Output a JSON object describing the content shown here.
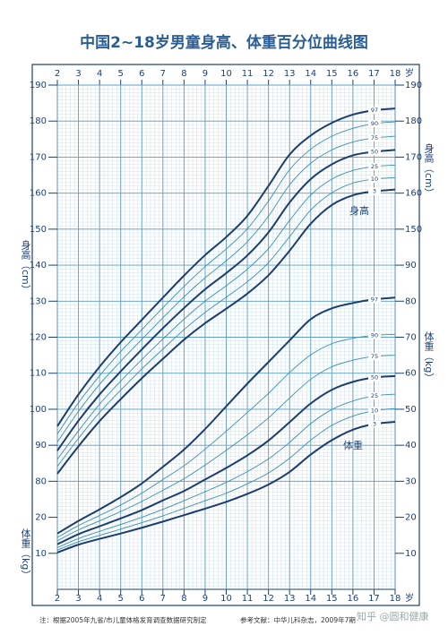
{
  "chart_data": {
    "type": "line",
    "title": "中国2~18岁男童身高、体重百分位曲线图",
    "x_unit": "岁",
    "height_label": "身高（cm）",
    "weight_label": "体重（kg）",
    "height_curve_label": "身高",
    "weight_curve_label": "体重",
    "x": [
      2,
      3,
      4,
      5,
      6,
      7,
      8,
      9,
      10,
      11,
      12,
      13,
      14,
      15,
      16,
      17,
      18
    ],
    "xlim": [
      2,
      18
    ],
    "xticks": [
      2,
      3,
      4,
      5,
      6,
      7,
      8,
      9,
      10,
      11,
      12,
      13,
      14,
      15,
      16,
      17,
      18
    ],
    "ylim": [
      50,
      190
    ],
    "yticks": [
      80,
      90,
      100,
      110,
      120,
      130,
      140,
      150,
      160,
      170,
      180,
      190
    ],
    "yticks_right": [
      150,
      160,
      170,
      180,
      190
    ],
    "y2lim": [
      0,
      140
    ],
    "y2ticks": [
      10,
      20,
      30,
      40,
      50,
      60,
      70,
      80,
      90
    ],
    "y2ticks_left": [
      10,
      20
    ],
    "grid": true,
    "series": [
      {
        "name": "97",
        "color": "#1c3d6e",
        "values": [
          95.3,
          104.1,
          111.8,
          118.6,
          124.8,
          131.0,
          137.1,
          142.8,
          147.8,
          153.7,
          162.0,
          170.7,
          176.0,
          179.5,
          181.8,
          183.0,
          183.5
        ]
      },
      {
        "name": "90",
        "color": "#3a8fb0",
        "values": [
          93.1,
          101.8,
          109.3,
          116.0,
          122.1,
          128.2,
          134.1,
          139.6,
          144.5,
          150.1,
          157.8,
          166.5,
          172.2,
          175.8,
          178.0,
          179.3,
          179.8
        ]
      },
      {
        "name": "75",
        "color": "#3a8fb0",
        "values": [
          90.9,
          99.4,
          106.9,
          113.3,
          119.4,
          125.4,
          131.2,
          136.5,
          141.2,
          146.5,
          153.6,
          162.3,
          168.3,
          172.0,
          174.2,
          175.3,
          175.8
        ]
      },
      {
        "name": "50",
        "color": "#1c3d6e",
        "values": [
          88.5,
          96.8,
          104.1,
          110.5,
          116.6,
          122.5,
          128.1,
          133.3,
          137.8,
          142.7,
          149.1,
          157.4,
          163.9,
          168.0,
          170.5,
          171.5,
          172.0
        ]
      },
      {
        "name": "25",
        "color": "#3a8fb0",
        "values": [
          86.1,
          94.0,
          101.4,
          107.8,
          113.8,
          119.5,
          125.0,
          130.0,
          134.3,
          138.9,
          144.6,
          152.4,
          159.5,
          163.9,
          166.3,
          167.4,
          167.8
        ]
      },
      {
        "name": "10",
        "color": "#3a8fb0",
        "values": [
          84.1,
          91.9,
          99.1,
          105.3,
          111.2,
          116.7,
          122.1,
          126.9,
          131.1,
          135.4,
          140.7,
          147.9,
          155.3,
          160.1,
          162.8,
          163.9,
          164.3
        ]
      },
      {
        "name": "3",
        "color": "#1c3d6e",
        "values": [
          82.1,
          89.7,
          96.7,
          102.8,
          108.6,
          114.0,
          119.3,
          123.9,
          127.9,
          132.1,
          137.2,
          144.0,
          151.5,
          156.7,
          159.4,
          160.5,
          161.0
        ]
      },
      {
        "name": "97",
        "color": "#1c3d6e",
        "axis": "y2",
        "values": [
          15.5,
          19.0,
          22.2,
          25.6,
          29.4,
          34.0,
          38.8,
          44.5,
          50.8,
          57.1,
          63.1,
          69.1,
          75.0,
          78.0,
          79.5,
          80.5,
          81.0
        ]
      },
      {
        "name": "90",
        "color": "#3a8fb0",
        "axis": "y2",
        "values": [
          14.4,
          17.7,
          20.5,
          23.4,
          26.7,
          30.5,
          34.3,
          38.9,
          43.9,
          49.1,
          54.4,
          60.2,
          65.1,
          68.2,
          69.7,
          70.5,
          70.8
        ]
      },
      {
        "name": "75",
        "color": "#3a8fb0",
        "axis": "y2",
        "values": [
          13.5,
          16.5,
          19.0,
          21.6,
          24.4,
          27.5,
          30.7,
          34.5,
          38.6,
          42.9,
          47.6,
          53.1,
          58.3,
          61.8,
          63.6,
          64.7,
          65.0
        ]
      },
      {
        "name": "50",
        "color": "#1c3d6e",
        "axis": "y2",
        "values": [
          12.5,
          15.3,
          17.5,
          19.7,
          22.0,
          24.7,
          27.3,
          30.5,
          33.7,
          37.2,
          41.3,
          46.4,
          51.6,
          55.4,
          57.6,
          58.8,
          59.2
        ]
      },
      {
        "name": "25",
        "color": "#3a8fb0",
        "axis": "y2",
        "values": [
          11.6,
          14.1,
          16.1,
          18.0,
          20.0,
          22.2,
          24.6,
          27.1,
          29.7,
          32.7,
          36.2,
          40.8,
          46.0,
          49.9,
          52.3,
          53.7,
          54.2
        ]
      },
      {
        "name": "10",
        "color": "#3a8fb0",
        "axis": "y2",
        "values": [
          10.9,
          13.2,
          15.0,
          16.7,
          18.5,
          20.4,
          22.5,
          24.6,
          26.7,
          29.3,
          32.3,
          36.4,
          41.4,
          45.5,
          48.1,
          49.6,
          50.2
        ]
      },
      {
        "name": "3",
        "color": "#1c3d6e",
        "axis": "y2",
        "values": [
          10.2,
          12.4,
          14.0,
          15.5,
          17.1,
          18.8,
          20.6,
          22.4,
          24.3,
          26.5,
          29.1,
          32.6,
          37.4,
          41.4,
          44.3,
          45.9,
          46.5
        ]
      }
    ],
    "note": "注：根据2005年九省/市儿童体格发育调查数据研究制定",
    "reference": "参考文献：中华儿科杂志，2009年7期",
    "watermark": "知乎 @圆和健康"
  }
}
